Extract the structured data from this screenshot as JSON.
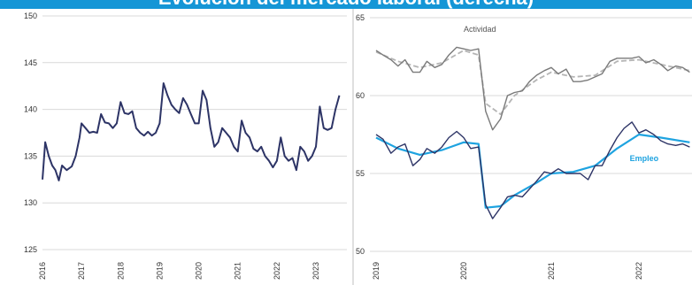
{
  "title": "Evolución del mercado laboral (derecha)",
  "chart_data": [
    {
      "type": "line",
      "x_ticks": [
        "2016",
        "2017",
        "2018",
        "2019",
        "2020",
        "2021",
        "2022",
        "2023"
      ],
      "y_ticks": [
        "150",
        "145",
        "140",
        "135",
        "130",
        "125"
      ],
      "ylim": [
        125,
        150
      ],
      "grid": "horizontal",
      "line_color": "#2d3466",
      "series": [
        {
          "values": [
            [
              2016.0,
              132.5
            ],
            [
              2016.07,
              136.5
            ],
            [
              2016.16,
              135.0
            ],
            [
              2016.25,
              134.0
            ],
            [
              2016.33,
              133.5
            ],
            [
              2016.42,
              132.4
            ],
            [
              2016.5,
              134.0
            ],
            [
              2016.62,
              133.5
            ],
            [
              2016.75,
              133.9
            ],
            [
              2016.85,
              135.0
            ],
            [
              2016.95,
              137.0
            ],
            [
              2017.0,
              138.5
            ],
            [
              2017.1,
              138.0
            ],
            [
              2017.2,
              137.5
            ],
            [
              2017.3,
              137.6
            ],
            [
              2017.4,
              137.5
            ],
            [
              2017.5,
              139.5
            ],
            [
              2017.6,
              138.6
            ],
            [
              2017.7,
              138.5
            ],
            [
              2017.8,
              138.0
            ],
            [
              2017.9,
              138.5
            ],
            [
              2018.0,
              140.8
            ],
            [
              2018.1,
              139.6
            ],
            [
              2018.2,
              139.5
            ],
            [
              2018.3,
              139.8
            ],
            [
              2018.4,
              138.0
            ],
            [
              2018.5,
              137.5
            ],
            [
              2018.6,
              137.2
            ],
            [
              2018.7,
              137.6
            ],
            [
              2018.8,
              137.2
            ],
            [
              2018.9,
              137.5
            ],
            [
              2019.0,
              138.5
            ],
            [
              2019.1,
              142.8
            ],
            [
              2019.2,
              141.5
            ],
            [
              2019.3,
              140.5
            ],
            [
              2019.4,
              140.0
            ],
            [
              2019.5,
              139.6
            ],
            [
              2019.6,
              141.2
            ],
            [
              2019.7,
              140.5
            ],
            [
              2019.8,
              139.5
            ],
            [
              2019.9,
              138.5
            ],
            [
              2020.0,
              138.5
            ],
            [
              2020.1,
              142.0
            ],
            [
              2020.2,
              141.0
            ],
            [
              2020.3,
              138.0
            ],
            [
              2020.4,
              136.0
            ],
            [
              2020.5,
              136.5
            ],
            [
              2020.6,
              138.0
            ],
            [
              2020.7,
              137.5
            ],
            [
              2020.8,
              137.0
            ],
            [
              2020.9,
              136.0
            ],
            [
              2021.0,
              135.5
            ],
            [
              2021.1,
              138.8
            ],
            [
              2021.2,
              137.5
            ],
            [
              2021.3,
              137.0
            ],
            [
              2021.4,
              135.8
            ],
            [
              2021.5,
              135.5
            ],
            [
              2021.6,
              136.0
            ],
            [
              2021.7,
              135.0
            ],
            [
              2021.8,
              134.5
            ],
            [
              2021.9,
              133.8
            ],
            [
              2022.0,
              134.5
            ],
            [
              2022.1,
              137.0
            ],
            [
              2022.2,
              135.0
            ],
            [
              2022.3,
              134.5
            ],
            [
              2022.4,
              134.8
            ],
            [
              2022.5,
              133.5
            ],
            [
              2022.6,
              136.0
            ],
            [
              2022.7,
              135.5
            ],
            [
              2022.8,
              134.5
            ],
            [
              2022.9,
              135.0
            ],
            [
              2023.0,
              136.0
            ],
            [
              2023.1,
              140.3
            ],
            [
              2023.2,
              138.0
            ],
            [
              2023.3,
              137.8
            ],
            [
              2023.4,
              138.0
            ],
            [
              2023.5,
              140.0
            ],
            [
              2023.6,
              141.5
            ]
          ]
        }
      ]
    },
    {
      "type": "line",
      "x_ticks": [
        "2019",
        "2020",
        "2021",
        "2022"
      ],
      "y_ticks": [
        "65",
        "60",
        "55",
        "50"
      ],
      "ylim": [
        50,
        65
      ],
      "grid": "horizontal",
      "series": [
        {
          "name": "Actividad",
          "style": "raw",
          "color": "#7a7a7a",
          "values": [
            [
              2019.0,
              62.9
            ],
            [
              2019.08,
              62.6
            ],
            [
              2019.17,
              62.3
            ],
            [
              2019.25,
              61.9
            ],
            [
              2019.33,
              62.3
            ],
            [
              2019.42,
              61.5
            ],
            [
              2019.5,
              61.5
            ],
            [
              2019.58,
              62.2
            ],
            [
              2019.67,
              61.8
            ],
            [
              2019.75,
              62.0
            ],
            [
              2019.83,
              62.6
            ],
            [
              2019.92,
              63.1
            ],
            [
              2020.0,
              63.0
            ],
            [
              2020.08,
              62.9
            ],
            [
              2020.17,
              63.0
            ],
            [
              2020.25,
              59.0
            ],
            [
              2020.33,
              57.8
            ],
            [
              2020.42,
              58.5
            ],
            [
              2020.5,
              60.0
            ],
            [
              2020.58,
              60.2
            ],
            [
              2020.67,
              60.3
            ],
            [
              2020.75,
              60.9
            ],
            [
              2020.83,
              61.3
            ],
            [
              2020.92,
              61.6
            ],
            [
              2021.0,
              61.8
            ],
            [
              2021.08,
              61.4
            ],
            [
              2021.17,
              61.7
            ],
            [
              2021.25,
              60.9
            ],
            [
              2021.33,
              60.9
            ],
            [
              2021.42,
              61.0
            ],
            [
              2021.5,
              61.2
            ],
            [
              2021.58,
              61.4
            ],
            [
              2021.67,
              62.2
            ],
            [
              2021.75,
              62.4
            ],
            [
              2021.83,
              62.4
            ],
            [
              2021.92,
              62.4
            ],
            [
              2022.0,
              62.5
            ],
            [
              2022.08,
              62.1
            ],
            [
              2022.17,
              62.3
            ],
            [
              2022.25,
              62.0
            ],
            [
              2022.33,
              61.6
            ],
            [
              2022.42,
              61.9
            ],
            [
              2022.5,
              61.8
            ],
            [
              2022.58,
              61.5
            ]
          ]
        },
        {
          "name": "Actividad",
          "style": "trend",
          "color": "#b5b5b5",
          "values": [
            [
              2019.0,
              62.8
            ],
            [
              2019.25,
              62.2
            ],
            [
              2019.5,
              61.8
            ],
            [
              2019.75,
              62.1
            ],
            [
              2020.0,
              62.9
            ],
            [
              2020.17,
              62.6
            ],
            [
              2020.25,
              59.5
            ],
            [
              2020.42,
              58.8
            ],
            [
              2020.58,
              60.0
            ],
            [
              2020.83,
              61.0
            ],
            [
              2021.0,
              61.5
            ],
            [
              2021.25,
              61.2
            ],
            [
              2021.5,
              61.3
            ],
            [
              2021.75,
              62.2
            ],
            [
              2022.0,
              62.3
            ],
            [
              2022.25,
              62.0
            ],
            [
              2022.58,
              61.6
            ]
          ]
        },
        {
          "name": "Empleo",
          "style": "raw",
          "color": "#2d3466",
          "values": [
            [
              2019.0,
              57.5
            ],
            [
              2019.08,
              57.2
            ],
            [
              2019.17,
              56.3
            ],
            [
              2019.25,
              56.7
            ],
            [
              2019.33,
              56.9
            ],
            [
              2019.42,
              55.5
            ],
            [
              2019.5,
              55.9
            ],
            [
              2019.58,
              56.6
            ],
            [
              2019.67,
              56.3
            ],
            [
              2019.75,
              56.7
            ],
            [
              2019.83,
              57.3
            ],
            [
              2019.92,
              57.7
            ],
            [
              2020.0,
              57.3
            ],
            [
              2020.08,
              56.6
            ],
            [
              2020.17,
              56.7
            ],
            [
              2020.25,
              53.0
            ],
            [
              2020.33,
              52.1
            ],
            [
              2020.42,
              52.8
            ],
            [
              2020.5,
              53.5
            ],
            [
              2020.58,
              53.6
            ],
            [
              2020.67,
              53.5
            ],
            [
              2020.75,
              54.0
            ],
            [
              2020.83,
              54.5
            ],
            [
              2020.92,
              55.1
            ],
            [
              2021.0,
              55.0
            ],
            [
              2021.08,
              55.3
            ],
            [
              2021.17,
              55.0
            ],
            [
              2021.25,
              55.0
            ],
            [
              2021.33,
              55.0
            ],
            [
              2021.42,
              54.6
            ],
            [
              2021.5,
              55.5
            ],
            [
              2021.58,
              55.5
            ],
            [
              2021.67,
              56.5
            ],
            [
              2021.75,
              57.3
            ],
            [
              2021.83,
              57.9
            ],
            [
              2021.92,
              58.3
            ],
            [
              2022.0,
              57.6
            ],
            [
              2022.08,
              57.8
            ],
            [
              2022.17,
              57.5
            ],
            [
              2022.25,
              57.1
            ],
            [
              2022.33,
              56.9
            ],
            [
              2022.42,
              56.8
            ],
            [
              2022.5,
              56.9
            ],
            [
              2022.58,
              56.7
            ]
          ]
        },
        {
          "name": "Empleo",
          "style": "trend",
          "color": "#1ea3e0",
          "values": [
            [
              2019.0,
              57.3
            ],
            [
              2019.25,
              56.6
            ],
            [
              2019.5,
              56.2
            ],
            [
              2019.75,
              56.5
            ],
            [
              2020.0,
              57.0
            ],
            [
              2020.17,
              56.9
            ],
            [
              2020.25,
              52.8
            ],
            [
              2020.42,
              52.9
            ],
            [
              2020.58,
              53.6
            ],
            [
              2020.83,
              54.4
            ],
            [
              2021.0,
              55.0
            ],
            [
              2021.25,
              55.1
            ],
            [
              2021.5,
              55.5
            ],
            [
              2021.75,
              56.6
            ],
            [
              2022.0,
              57.5
            ],
            [
              2022.25,
              57.3
            ],
            [
              2022.58,
              57.0
            ]
          ]
        }
      ],
      "labels": {
        "actividad": "Actividad",
        "empleo": "Empleo"
      }
    }
  ]
}
